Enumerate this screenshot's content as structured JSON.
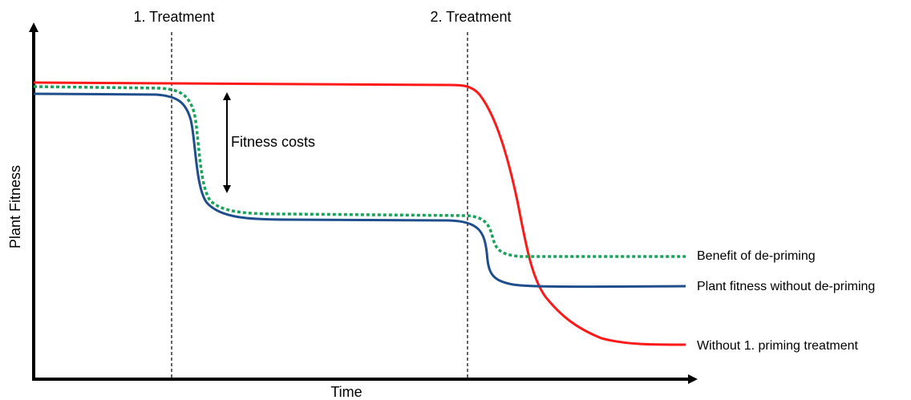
{
  "axes": {
    "y_label": "Plant Fitness",
    "x_label": "Time"
  },
  "treatments": [
    "1. Treatment",
    "2. Treatment"
  ],
  "annotation": "Fitness costs",
  "curves": [
    {
      "label": "Benefit of de-priming"
    },
    {
      "label": "Plant fitness without de-priming"
    },
    {
      "label": "Without 1. priming treatment"
    }
  ]
}
